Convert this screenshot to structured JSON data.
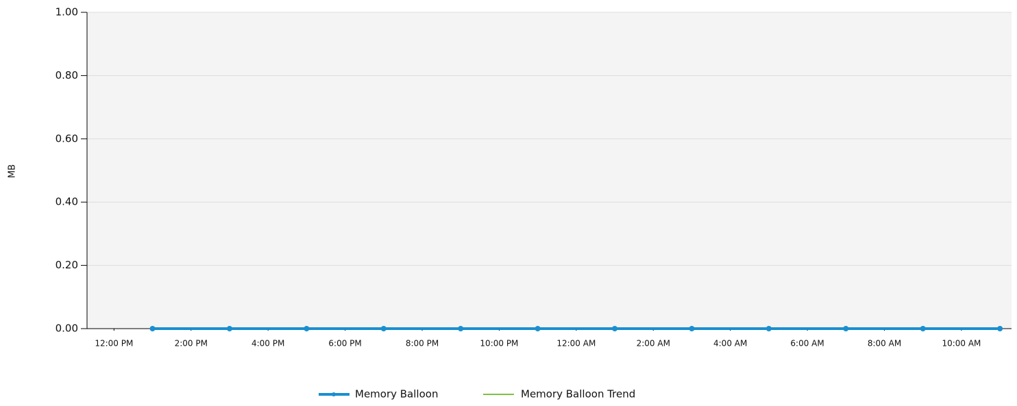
{
  "chart_data": {
    "type": "line",
    "y_label": "MB",
    "x": [
      13,
      15,
      17,
      19,
      21,
      23,
      25,
      27,
      29,
      31,
      33,
      35
    ],
    "series": [
      {
        "name": "Memory Balloon",
        "color": "#1a8fcf",
        "values": [
          0,
          0,
          0,
          0,
          0,
          0,
          0,
          0,
          0,
          0,
          0,
          0
        ]
      },
      {
        "name": "Memory Balloon Trend",
        "color": "#7cc242",
        "values": [
          0,
          0,
          0,
          0,
          0,
          0,
          0,
          0,
          0,
          0,
          0,
          0
        ]
      }
    ],
    "xlim": [
      11.3,
      35.3
    ],
    "xticks": [
      {
        "value": 12,
        "label": "12:00 PM"
      },
      {
        "value": 14,
        "label": "2:00 PM"
      },
      {
        "value": 16,
        "label": "4:00 PM"
      },
      {
        "value": 18,
        "label": "6:00 PM"
      },
      {
        "value": 20,
        "label": "8:00 PM"
      },
      {
        "value": 22,
        "label": "10:00 PM"
      },
      {
        "value": 24,
        "label": "12:00 AM"
      },
      {
        "value": 26,
        "label": "2:00 AM"
      },
      {
        "value": 28,
        "label": "4:00 AM"
      },
      {
        "value": 30,
        "label": "6:00 AM"
      },
      {
        "value": 32,
        "label": "8:00 AM"
      },
      {
        "value": 34,
        "label": "10:00 AM"
      }
    ],
    "ylim": [
      0,
      1
    ],
    "yticks": [
      {
        "value": 0,
        "label": "0.00"
      },
      {
        "value": 0.2,
        "label": "0.20"
      },
      {
        "value": 0.4,
        "label": "0.40"
      },
      {
        "value": 0.6,
        "label": "0.60"
      },
      {
        "value": 0.8,
        "label": "0.80"
      },
      {
        "value": 1,
        "label": "1.00"
      }
    ],
    "grid": true,
    "legend": "bottom"
  }
}
